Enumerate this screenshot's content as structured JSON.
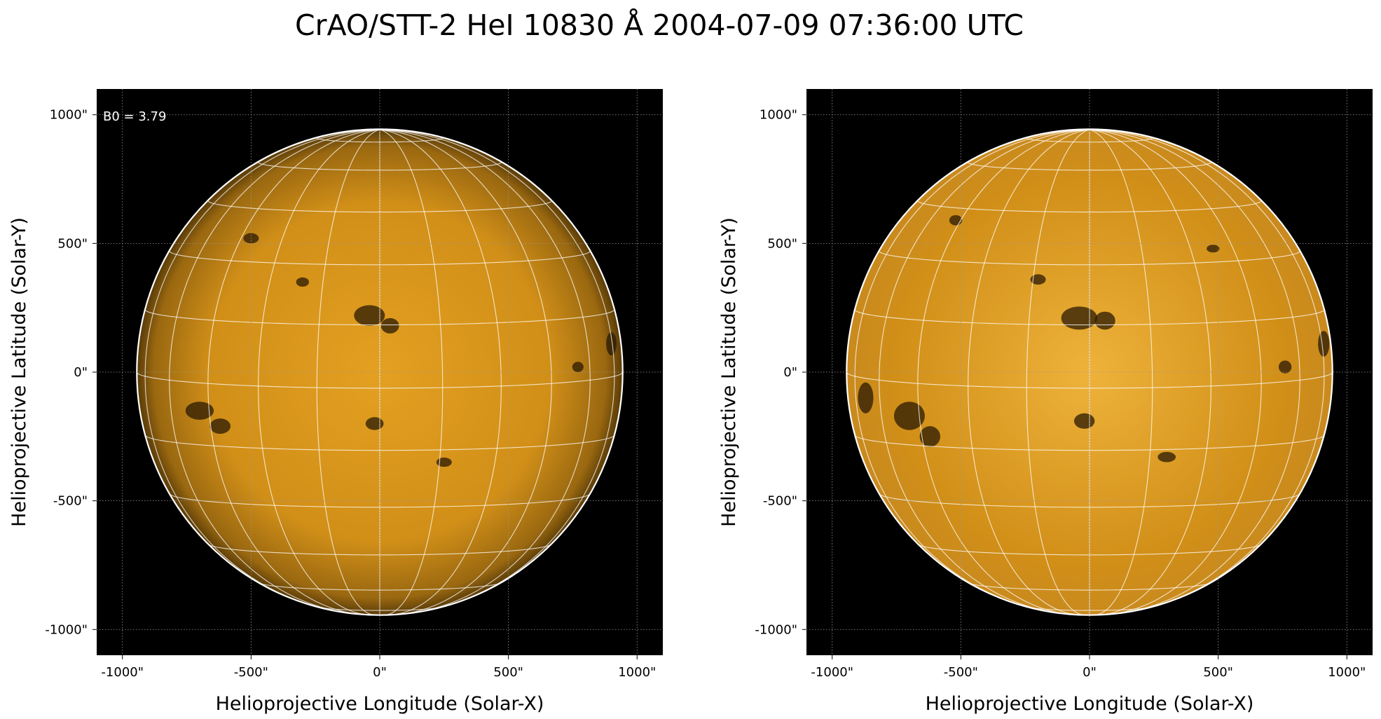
{
  "figure": {
    "title": "CrAO/STT-2 HeI 10830 Å 2004-07-09 07:36:00 UTC"
  },
  "colors": {
    "background": "#000000",
    "disk_center": "#e3a021",
    "disk_mid": "#d18f18",
    "disk_limb": "#5a3c08",
    "disk_right_center": "#eeb23a",
    "disk_right_limb": "#c98a1e",
    "feature": "#2a1a03",
    "grid": "#ffffff",
    "limb_outline": "#ffffff",
    "coord_grid": "#9a9a9a"
  },
  "chart_data": [
    {
      "type": "image",
      "panel": "left",
      "xlabel": "Helioprojective Longitude (Solar-X)",
      "ylabel": "Helioprojective Latitude (Solar-Y)",
      "xlim": [
        -1100,
        1100
      ],
      "ylim": [
        -1100,
        1100
      ],
      "xticks": [
        -1000,
        -500,
        0,
        500,
        1000
      ],
      "yticks": [
        -1000,
        -500,
        0,
        500,
        1000
      ],
      "xtick_labels": [
        "-1000\"",
        "-500\"",
        "0\"",
        "500\"",
        "1000\""
      ],
      "ytick_labels": [
        "-1000\"",
        "-500\"",
        "0\"",
        "500\"",
        "1000\""
      ],
      "solar_radius_arcsec": 944,
      "b0_deg": 3.79,
      "annotation": "B0 = 3.79",
      "heliographic_grid_step_deg": 15,
      "coordinate_grid": true,
      "dark_features": [
        {
          "x": -700,
          "y": -150,
          "rx": 55,
          "ry": 35
        },
        {
          "x": -620,
          "y": -210,
          "rx": 40,
          "ry": 30
        },
        {
          "x": -40,
          "y": 220,
          "rx": 60,
          "ry": 40
        },
        {
          "x": 40,
          "y": 180,
          "rx": 35,
          "ry": 30
        },
        {
          "x": -20,
          "y": -200,
          "rx": 35,
          "ry": 25
        },
        {
          "x": 770,
          "y": 20,
          "rx": 22,
          "ry": 20
        },
        {
          "x": 900,
          "y": 110,
          "rx": 20,
          "ry": 45
        },
        {
          "x": -500,
          "y": 520,
          "rx": 30,
          "ry": 20
        },
        {
          "x": -300,
          "y": 350,
          "rx": 25,
          "ry": 18
        },
        {
          "x": 250,
          "y": -350,
          "rx": 30,
          "ry": 18
        }
      ]
    },
    {
      "type": "image",
      "panel": "right",
      "xlabel": "Helioprojective Longitude (Solar-X)",
      "ylabel": "Helioprojective Latitude (Solar-Y)",
      "xlim": [
        -1100,
        1100
      ],
      "ylim": [
        -1100,
        1100
      ],
      "xticks": [
        -1000,
        -500,
        0,
        500,
        1000
      ],
      "yticks": [
        -1000,
        -500,
        0,
        500,
        1000
      ],
      "xtick_labels": [
        "-1000\"",
        "-500\"",
        "0\"",
        "500\"",
        "1000\""
      ],
      "ytick_labels": [
        "-1000\"",
        "-500\"",
        "0\"",
        "500\"",
        "1000\""
      ],
      "solar_radius_arcsec": 944,
      "heliographic_grid_step_deg": 15,
      "coordinate_grid": true,
      "dark_features": [
        {
          "x": -700,
          "y": -170,
          "rx": 60,
          "ry": 55
        },
        {
          "x": -620,
          "y": -250,
          "rx": 40,
          "ry": 40
        },
        {
          "x": -40,
          "y": 210,
          "rx": 70,
          "ry": 45
        },
        {
          "x": 60,
          "y": 200,
          "rx": 40,
          "ry": 35
        },
        {
          "x": -20,
          "y": -190,
          "rx": 40,
          "ry": 30
        },
        {
          "x": 760,
          "y": 20,
          "rx": 25,
          "ry": 25
        },
        {
          "x": 910,
          "y": 110,
          "rx": 22,
          "ry": 50
        },
        {
          "x": -520,
          "y": 590,
          "rx": 25,
          "ry": 20
        },
        {
          "x": -870,
          "y": -100,
          "rx": 30,
          "ry": 60
        },
        {
          "x": -200,
          "y": 360,
          "rx": 30,
          "ry": 20
        },
        {
          "x": 300,
          "y": -330,
          "rx": 35,
          "ry": 20
        },
        {
          "x": 480,
          "y": 480,
          "rx": 25,
          "ry": 15
        }
      ]
    }
  ]
}
